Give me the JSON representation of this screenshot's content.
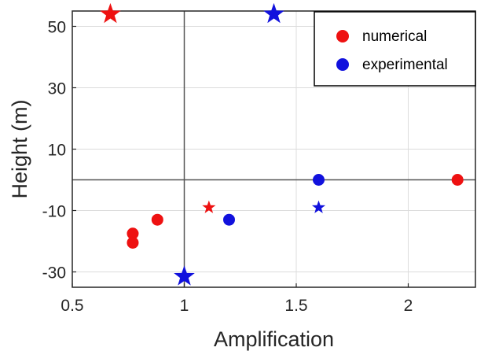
{
  "chart_data": {
    "type": "scatter",
    "xlabel": "Amplification",
    "ylabel": "Height (m)",
    "xlim": [
      0.5,
      2.3
    ],
    "ylim": [
      -35,
      55
    ],
    "xticks": [
      0.5,
      1,
      1.5,
      2
    ],
    "xtick_labels": [
      "0.5",
      "1",
      "1.5",
      "2"
    ],
    "yticks": [
      -30,
      -10,
      10,
      30,
      50
    ],
    "ytick_labels": [
      "-30",
      "-10",
      "10",
      "30",
      "50"
    ],
    "grid": true,
    "reference_lines": {
      "x": 1,
      "y": 0
    },
    "legend_position": "top-right",
    "legend": [
      {
        "label": "numerical",
        "color": "#ee1111"
      },
      {
        "label": "experimental",
        "color": "#1111dd"
      }
    ],
    "series": [
      {
        "name": "numerical",
        "color": "#ee1111",
        "points": [
          {
            "x": 0.67,
            "y": 54,
            "marker": "star-large"
          },
          {
            "x": 1.11,
            "y": -9,
            "marker": "star-small"
          },
          {
            "x": 0.77,
            "y": -17.5,
            "marker": "circle"
          },
          {
            "x": 0.77,
            "y": -20.5,
            "marker": "circle"
          },
          {
            "x": 0.88,
            "y": -13,
            "marker": "circle"
          },
          {
            "x": 2.22,
            "y": 0,
            "marker": "circle"
          }
        ]
      },
      {
        "name": "experimental",
        "color": "#1111dd",
        "points": [
          {
            "x": 1.4,
            "y": 54,
            "marker": "star-large"
          },
          {
            "x": 1.0,
            "y": -31.5,
            "marker": "star-large"
          },
          {
            "x": 1.6,
            "y": -9,
            "marker": "star-small"
          },
          {
            "x": 1.6,
            "y": 0,
            "marker": "circle"
          },
          {
            "x": 1.2,
            "y": -13,
            "marker": "circle"
          }
        ]
      }
    ]
  }
}
